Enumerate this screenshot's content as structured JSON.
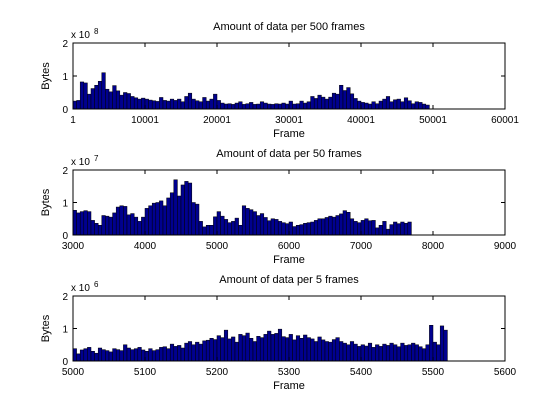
{
  "chart_data": [
    {
      "type": "bar",
      "title": "Amount of data per 500 frames",
      "xlabel": "Frame",
      "ylabel": "Bytes",
      "exponent_label": "x 10",
      "exponent": "8",
      "xlim": [
        1,
        60001
      ],
      "ylim": [
        0,
        2
      ],
      "xticks": [
        "1",
        "10001",
        "20001",
        "30001",
        "40001",
        "50001",
        "60001"
      ],
      "yticks": [
        "0",
        "1",
        "2"
      ],
      "bar_color": "#00008f",
      "x_start": 1,
      "x_step": 500,
      "values": [
        0.24,
        0.26,
        0.82,
        0.79,
        0.45,
        0.62,
        0.72,
        0.84,
        1.1,
        0.6,
        0.52,
        0.71,
        0.55,
        0.42,
        0.5,
        0.47,
        0.38,
        0.34,
        0.3,
        0.33,
        0.3,
        0.27,
        0.25,
        0.23,
        0.35,
        0.26,
        0.24,
        0.3,
        0.26,
        0.3,
        0.22,
        0.38,
        0.48,
        0.3,
        0.25,
        0.22,
        0.35,
        0.24,
        0.3,
        0.45,
        0.26,
        0.18,
        0.15,
        0.16,
        0.14,
        0.18,
        0.22,
        0.14,
        0.16,
        0.2,
        0.14,
        0.15,
        0.22,
        0.18,
        0.15,
        0.14,
        0.16,
        0.15,
        0.18,
        0.15,
        0.24,
        0.15,
        0.16,
        0.24,
        0.18,
        0.22,
        0.38,
        0.32,
        0.42,
        0.36,
        0.3,
        0.36,
        0.48,
        0.45,
        0.72,
        0.56,
        0.65,
        0.46,
        0.32,
        0.24,
        0.2,
        0.18,
        0.15,
        0.22,
        0.16,
        0.24,
        0.3,
        0.38,
        0.22,
        0.28,
        0.3,
        0.22,
        0.34,
        0.25,
        0.16,
        0.22,
        0.2,
        0.15,
        0.12
      ]
    },
    {
      "type": "bar",
      "title": "Amount of data per 50 frames",
      "xlabel": "Frame",
      "ylabel": "Bytes",
      "exponent_label": "x 10",
      "exponent": "7",
      "xlim": [
        3000,
        9000
      ],
      "ylim": [
        0,
        2
      ],
      "xticks": [
        "3000",
        "4000",
        "5000",
        "6000",
        "7000",
        "8000",
        "9000"
      ],
      "yticks": [
        "0",
        "1",
        "2"
      ],
      "bar_color": "#00008f",
      "x_start": 3000,
      "x_step": 50,
      "values": [
        0.76,
        0.68,
        0.72,
        0.75,
        0.72,
        0.45,
        0.36,
        0.3,
        0.6,
        0.58,
        0.55,
        0.68,
        0.86,
        0.9,
        0.88,
        0.62,
        0.66,
        0.55,
        0.42,
        0.55,
        0.82,
        0.9,
        0.98,
        1.0,
        1.05,
        0.9,
        1.14,
        1.3,
        1.7,
        1.2,
        1.54,
        1.65,
        1.6,
        1.0,
        0.95,
        0.42,
        0.25,
        0.3,
        0.3,
        0.56,
        0.72,
        0.58,
        0.48,
        0.38,
        0.42,
        0.52,
        0.3,
        0.9,
        0.82,
        0.78,
        0.72,
        0.6,
        0.66,
        0.54,
        0.44,
        0.5,
        0.48,
        0.42,
        0.38,
        0.35,
        0.4,
        0.26,
        0.3,
        0.32,
        0.36,
        0.38,
        0.4,
        0.45,
        0.5,
        0.5,
        0.54,
        0.58,
        0.55,
        0.6,
        0.65,
        0.75,
        0.7,
        0.5,
        0.42,
        0.38,
        0.45,
        0.5,
        0.44,
        0.45,
        0.22,
        0.3,
        0.42,
        0.18,
        0.32,
        0.4,
        0.35,
        0.4,
        0.36,
        0.4
      ]
    },
    {
      "type": "bar",
      "title": "Amount of data per 5 frames",
      "xlabel": "Frame",
      "ylabel": "Bytes",
      "exponent_label": "x 10",
      "exponent": "6",
      "xlim": [
        5000,
        5600
      ],
      "ylim": [
        0,
        2
      ],
      "xticks": [
        "5000",
        "5100",
        "5200",
        "5300",
        "5400",
        "5500",
        "5600"
      ],
      "yticks": [
        "0",
        "1",
        "2"
      ],
      "bar_color": "#00008f",
      "x_start": 5000,
      "x_step": 5,
      "values": [
        0.38,
        0.22,
        0.34,
        0.38,
        0.42,
        0.3,
        0.24,
        0.4,
        0.35,
        0.32,
        0.28,
        0.38,
        0.35,
        0.32,
        0.5,
        0.4,
        0.35,
        0.38,
        0.42,
        0.34,
        0.3,
        0.38,
        0.32,
        0.35,
        0.42,
        0.44,
        0.38,
        0.52,
        0.45,
        0.48,
        0.4,
        0.55,
        0.6,
        0.5,
        0.58,
        0.52,
        0.62,
        0.64,
        0.7,
        0.66,
        0.78,
        0.72,
        0.95,
        0.68,
        0.74,
        0.58,
        0.82,
        0.78,
        0.86,
        0.7,
        0.6,
        0.76,
        0.72,
        0.82,
        0.92,
        0.82,
        0.85,
        0.98,
        0.75,
        0.72,
        0.82,
        0.65,
        0.78,
        0.7,
        0.8,
        0.72,
        0.68,
        0.6,
        0.74,
        0.65,
        0.6,
        0.58,
        0.66,
        0.72,
        0.6,
        0.55,
        0.5,
        0.6,
        0.52,
        0.45,
        0.5,
        0.46,
        0.55,
        0.42,
        0.5,
        0.45,
        0.52,
        0.48,
        0.55,
        0.5,
        0.44,
        0.55,
        0.48,
        0.5,
        0.55,
        0.5,
        0.44,
        0.38,
        0.5,
        1.1,
        0.58,
        0.5,
        1.08,
        0.95
      ]
    }
  ]
}
